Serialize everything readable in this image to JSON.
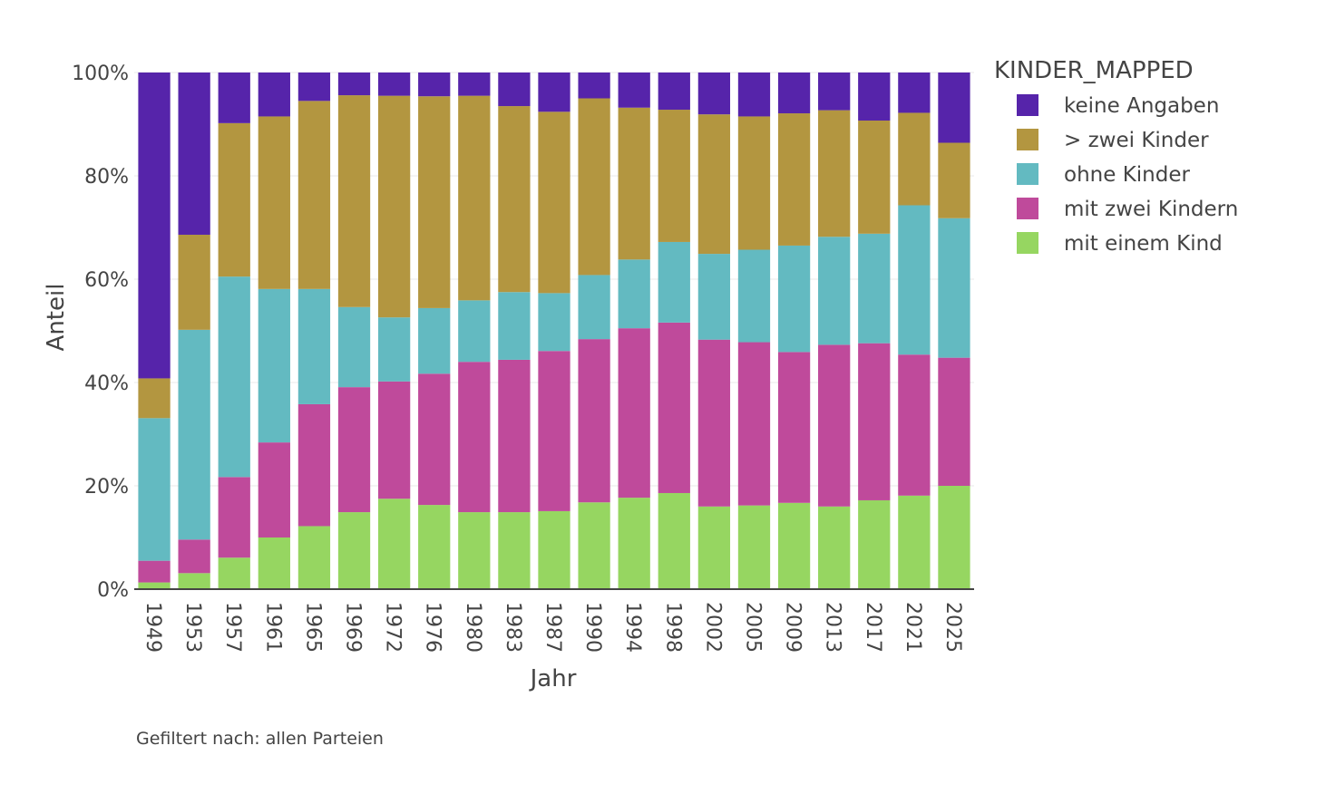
{
  "chart_data": {
    "type": "bar",
    "stacked": true,
    "xlabel": "Jahr",
    "ylabel": "Anteil",
    "ylim": [
      0,
      100
    ],
    "ytick_values": [
      0,
      20,
      40,
      60,
      80,
      100
    ],
    "ytick_labels": [
      "0%",
      "20%",
      "40%",
      "60%",
      "80%",
      "100%"
    ],
    "grid": "horizontal",
    "legend_title": "KINDER_MAPPED",
    "legend_position": "right",
    "categories": [
      "1949",
      "1953",
      "1957",
      "1961",
      "1965",
      "1969",
      "1972",
      "1976",
      "1980",
      "1983",
      "1987",
      "1990",
      "1994",
      "1998",
      "2002",
      "2005",
      "2009",
      "2013",
      "2017",
      "2021",
      "2025"
    ],
    "series": [
      {
        "name": "mit einem Kind",
        "color": "#96d661",
        "values": [
          1.3,
          3.1,
          6.1,
          10.0,
          12.2,
          14.9,
          17.5,
          16.3,
          14.9,
          14.9,
          15.1,
          16.8,
          17.7,
          18.6,
          16.0,
          16.2,
          16.7,
          16.0,
          17.2,
          18.1,
          20.0
        ]
      },
      {
        "name": "mit zwei Kindern",
        "color": "#bf4a9b",
        "values": [
          4.2,
          6.5,
          15.6,
          18.4,
          23.6,
          24.2,
          22.7,
          25.4,
          29.1,
          29.5,
          31.0,
          31.6,
          32.8,
          33.0,
          32.3,
          31.6,
          29.2,
          31.3,
          30.4,
          27.3,
          24.8
        ]
      },
      {
        "name": "ohne Kinder",
        "color": "#63bac1",
        "values": [
          27.6,
          40.6,
          38.8,
          29.7,
          22.3,
          15.5,
          12.4,
          12.7,
          11.9,
          13.1,
          11.2,
          12.4,
          13.3,
          15.6,
          16.6,
          17.9,
          20.6,
          20.9,
          21.2,
          28.9,
          27.0
        ]
      },
      {
        "name": "> zwei Kinder",
        "color": "#b39640",
        "values": [
          7.7,
          18.4,
          29.7,
          33.4,
          36.4,
          41.0,
          42.9,
          41.0,
          39.6,
          36.0,
          35.1,
          34.2,
          29.4,
          25.6,
          27.0,
          25.8,
          25.6,
          24.5,
          21.9,
          17.9,
          14.6
        ]
      },
      {
        "name": "keine Angaben",
        "color": "#5624aa",
        "values": [
          59.2,
          31.4,
          9.8,
          8.5,
          5.5,
          4.4,
          4.5,
          4.6,
          4.5,
          6.5,
          7.6,
          5.0,
          6.8,
          7.2,
          8.1,
          8.5,
          7.9,
          7.3,
          9.3,
          7.8,
          13.6
        ]
      }
    ],
    "legend_order": [
      "keine Angaben",
      "> zwei Kinder",
      "ohne Kinder",
      "mit zwei Kindern",
      "mit einem Kind"
    ],
    "footnote": "Gefiltert nach: allen Parteien"
  }
}
